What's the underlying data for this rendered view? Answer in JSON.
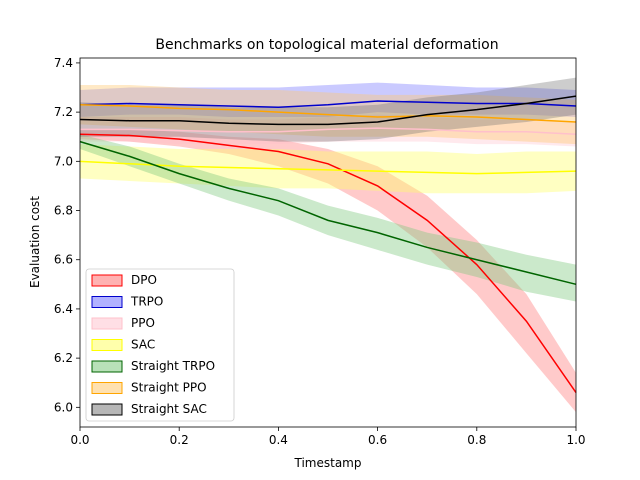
{
  "chart_data": {
    "type": "line",
    "title": "Benchmarks on topological material deformation",
    "xlabel": "Timestamp",
    "ylabel": "Evaluation cost",
    "xlim": [
      0.0,
      1.0
    ],
    "ylim": [
      5.92,
      7.42
    ],
    "xticks": [
      0.0,
      0.2,
      0.4,
      0.6,
      0.8,
      1.0
    ],
    "xtick_labels": [
      "0.0",
      "0.2",
      "0.4",
      "0.6",
      "0.8",
      "1.0"
    ],
    "yticks": [
      6.0,
      6.2,
      6.4,
      6.6,
      6.8,
      7.0,
      7.2,
      7.4
    ],
    "ytick_labels": [
      "6.0",
      "6.2",
      "6.4",
      "6.6",
      "6.8",
      "7.0",
      "7.2",
      "7.4"
    ],
    "legend_position": "lower-left",
    "x": [
      0.0,
      0.1,
      0.2,
      0.3,
      0.4,
      0.5,
      0.6,
      0.7,
      0.8,
      0.9,
      1.0
    ],
    "series": [
      {
        "name": "DPO",
        "color": "#ff0000",
        "fill": "#ff6666",
        "alpha": 0.35,
        "mean": [
          7.11,
          7.105,
          7.09,
          7.065,
          7.04,
          6.99,
          6.9,
          6.76,
          6.58,
          6.35,
          6.06
        ],
        "lower": [
          7.09,
          7.08,
          7.06,
          7.03,
          6.98,
          6.91,
          6.8,
          6.65,
          6.46,
          6.22,
          5.98
        ],
        "upper": [
          7.13,
          7.13,
          7.12,
          7.1,
          7.09,
          7.05,
          6.98,
          6.86,
          6.68,
          6.46,
          6.14
        ]
      },
      {
        "name": "TRPO",
        "color": "#0000cc",
        "fill": "#6666ff",
        "alpha": 0.35,
        "mean": [
          7.23,
          7.235,
          7.23,
          7.225,
          7.22,
          7.23,
          7.245,
          7.24,
          7.235,
          7.235,
          7.225
        ],
        "lower": [
          7.18,
          7.19,
          7.19,
          7.18,
          7.18,
          7.18,
          7.2,
          7.19,
          7.19,
          7.19,
          7.18
        ],
        "upper": [
          7.29,
          7.3,
          7.3,
          7.3,
          7.3,
          7.31,
          7.32,
          7.31,
          7.3,
          7.3,
          7.29
        ]
      },
      {
        "name": "PPO",
        "color": "#ffc0cb",
        "fill": "#ffc0cb",
        "alpha": 0.35,
        "mean": [
          7.13,
          7.13,
          7.125,
          7.12,
          7.12,
          7.13,
          7.135,
          7.13,
          7.12,
          7.12,
          7.11
        ],
        "lower": [
          7.08,
          7.08,
          7.07,
          7.07,
          7.07,
          7.08,
          7.08,
          7.08,
          7.07,
          7.07,
          7.06
        ],
        "upper": [
          7.18,
          7.18,
          7.18,
          7.17,
          7.17,
          7.18,
          7.19,
          7.18,
          7.17,
          7.17,
          7.16
        ]
      },
      {
        "name": "SAC",
        "color": "#ffff00",
        "fill": "#ffff66",
        "alpha": 0.4,
        "mean": [
          7.0,
          6.99,
          6.98,
          6.975,
          6.97,
          6.965,
          6.96,
          6.955,
          6.95,
          6.955,
          6.96
        ],
        "lower": [
          6.93,
          6.92,
          6.91,
          6.9,
          6.89,
          6.89,
          6.88,
          6.87,
          6.87,
          6.87,
          6.88
        ],
        "upper": [
          7.07,
          7.06,
          7.05,
          7.05,
          7.05,
          7.04,
          7.04,
          7.04,
          7.03,
          7.04,
          7.04
        ]
      },
      {
        "name": "Straight TRPO",
        "color": "#006400",
        "fill": "#7ec87e",
        "alpha": 0.4,
        "mean": [
          7.08,
          7.02,
          6.95,
          6.89,
          6.84,
          6.76,
          6.71,
          6.65,
          6.6,
          6.55,
          6.5
        ],
        "lower": [
          7.05,
          6.98,
          6.91,
          6.84,
          6.78,
          6.7,
          6.64,
          6.58,
          6.53,
          6.47,
          6.43
        ],
        "upper": [
          7.11,
          7.06,
          6.99,
          6.93,
          6.89,
          6.82,
          6.77,
          6.71,
          6.67,
          6.62,
          6.58
        ]
      },
      {
        "name": "Straight PPO",
        "color": "#ffa500",
        "fill": "#ffc870",
        "alpha": 0.4,
        "mean": [
          7.23,
          7.225,
          7.215,
          7.21,
          7.2,
          7.19,
          7.18,
          7.185,
          7.18,
          7.17,
          7.16
        ],
        "lower": [
          7.15,
          7.14,
          7.13,
          7.12,
          7.11,
          7.1,
          7.1,
          7.1,
          7.09,
          7.08,
          7.07
        ],
        "upper": [
          7.31,
          7.31,
          7.3,
          7.29,
          7.29,
          7.28,
          7.27,
          7.27,
          7.27,
          7.26,
          7.25
        ]
      },
      {
        "name": "Straight SAC",
        "color": "#000000",
        "fill": "#707070",
        "alpha": 0.35,
        "mean": [
          7.17,
          7.165,
          7.165,
          7.155,
          7.15,
          7.15,
          7.16,
          7.19,
          7.21,
          7.235,
          7.265
        ],
        "lower": [
          7.1,
          7.1,
          7.1,
          7.09,
          7.08,
          7.08,
          7.09,
          7.12,
          7.14,
          7.16,
          7.19
        ],
        "upper": [
          7.24,
          7.23,
          7.23,
          7.22,
          7.22,
          7.22,
          7.23,
          7.26,
          7.28,
          7.31,
          7.34
        ]
      }
    ]
  }
}
